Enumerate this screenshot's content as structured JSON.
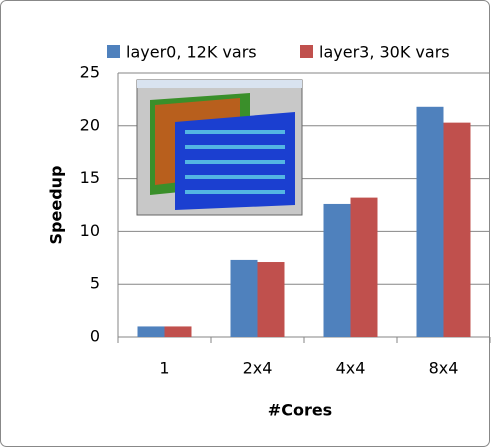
{
  "chart_data": {
    "type": "bar",
    "y_label": "Speedup",
    "x_label": "#Cores",
    "categories": [
      "1",
      "2x4",
      "4x4",
      "8x4"
    ],
    "series": [
      {
        "name": "layer0, 12K vars",
        "color": "#4f81bd",
        "values": [
          1,
          7.3,
          12.6,
          21.8
        ]
      },
      {
        "name": "layer3, 30K vars",
        "color": "#c0504d",
        "values": [
          1,
          7.1,
          13.2,
          20.3
        ]
      }
    ],
    "ylim": [
      0,
      25
    ],
    "yticks": [
      0,
      5,
      10,
      15,
      20,
      25
    ],
    "grid": true,
    "legend": "top"
  }
}
